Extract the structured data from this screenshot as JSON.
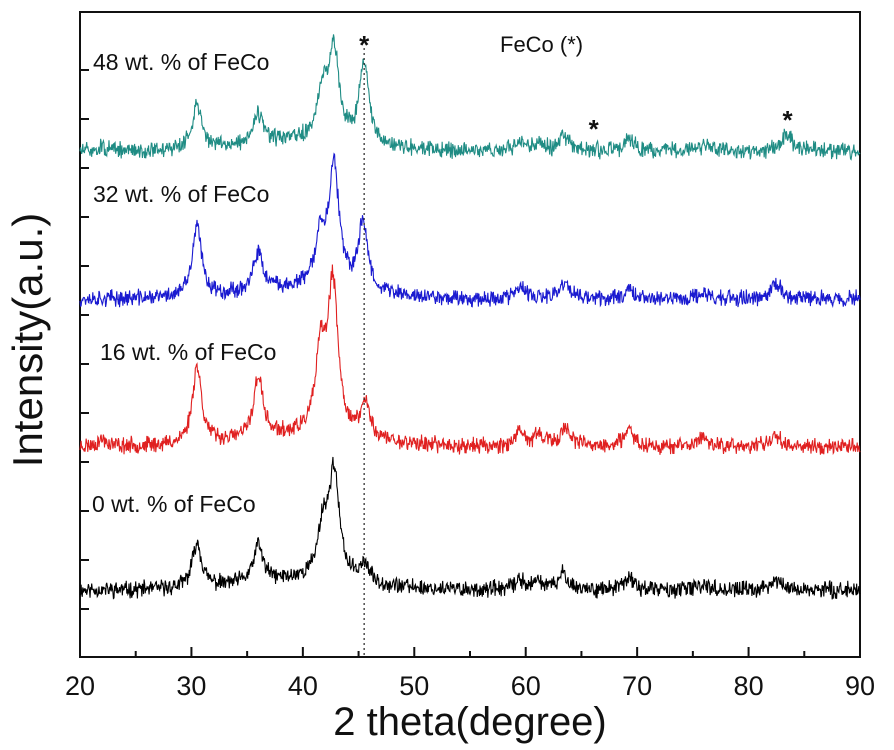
{
  "chart_data": {
    "type": "line",
    "title": "",
    "xlabel": "2 theta(degree)",
    "ylabel": "Intensity(a.u.)",
    "xlim": [
      20,
      90
    ],
    "xticks": [
      20,
      30,
      40,
      50,
      60,
      70,
      80,
      90
    ],
    "legend_note": "FeCo (*)",
    "reference_line_x": 45.5,
    "series": [
      {
        "name": "0 wt. % of FeCo",
        "color": "#000000",
        "baseline": 0.0,
        "seed": 11,
        "peaks": [
          [
            30.5,
            0.55
          ],
          [
            36.0,
            0.45
          ],
          [
            41.8,
            0.6
          ],
          [
            42.8,
            1.3
          ],
          [
            45.5,
            0.22
          ],
          [
            59.5,
            0.12
          ],
          [
            61.2,
            0.1
          ],
          [
            63.4,
            0.2
          ],
          [
            69.3,
            0.15
          ],
          [
            76.0,
            0.07
          ],
          [
            82.5,
            0.12
          ]
        ]
      },
      {
        "name": "16 wt. % of FeCo",
        "color": "#e02020",
        "baseline": 1.75,
        "seed": 23,
        "peaks": [
          [
            22.0,
            0.08
          ],
          [
            30.5,
            0.95
          ],
          [
            36.0,
            0.75
          ],
          [
            41.6,
            0.95
          ],
          [
            42.7,
            1.8
          ],
          [
            45.6,
            0.42
          ],
          [
            59.5,
            0.15
          ],
          [
            61.2,
            0.15
          ],
          [
            63.6,
            0.24
          ],
          [
            69.3,
            0.2
          ],
          [
            76.0,
            0.12
          ],
          [
            82.5,
            0.15
          ]
        ]
      },
      {
        "name": "32 wt. % of FeCo",
        "color": "#1a1ad0",
        "baseline": 3.55,
        "seed": 37,
        "peaks": [
          [
            30.5,
            0.85
          ],
          [
            36.0,
            0.45
          ],
          [
            41.6,
            0.6
          ],
          [
            42.8,
            1.45
          ],
          [
            45.4,
            0.85
          ],
          [
            59.5,
            0.14
          ],
          [
            63.5,
            0.2
          ],
          [
            69.3,
            0.13
          ],
          [
            76.0,
            0.08
          ],
          [
            82.5,
            0.2
          ]
        ]
      },
      {
        "name": "48 wt. % of FeCo",
        "color": "#1f8c84",
        "baseline": 5.35,
        "seed": 51,
        "peaks": [
          [
            22.0,
            0.05
          ],
          [
            30.5,
            0.55
          ],
          [
            36.0,
            0.35
          ],
          [
            41.8,
            0.55
          ],
          [
            42.8,
            1.1
          ],
          [
            45.5,
            1.0
          ],
          [
            59.5,
            0.13
          ],
          [
            61.2,
            0.1
          ],
          [
            63.5,
            0.18
          ],
          [
            69.3,
            0.15
          ],
          [
            76.2,
            0.1
          ],
          [
            83.5,
            0.22
          ]
        ]
      }
    ],
    "fe_co_markers": [
      {
        "x": 45.5,
        "series": "48 wt. % of FeCo",
        "label": "*"
      },
      {
        "x": 66.1,
        "series": "48 wt. % of FeCo",
        "label": "*"
      },
      {
        "x": 83.5,
        "series": "48 wt. % of FeCo",
        "label": "*"
      }
    ]
  }
}
